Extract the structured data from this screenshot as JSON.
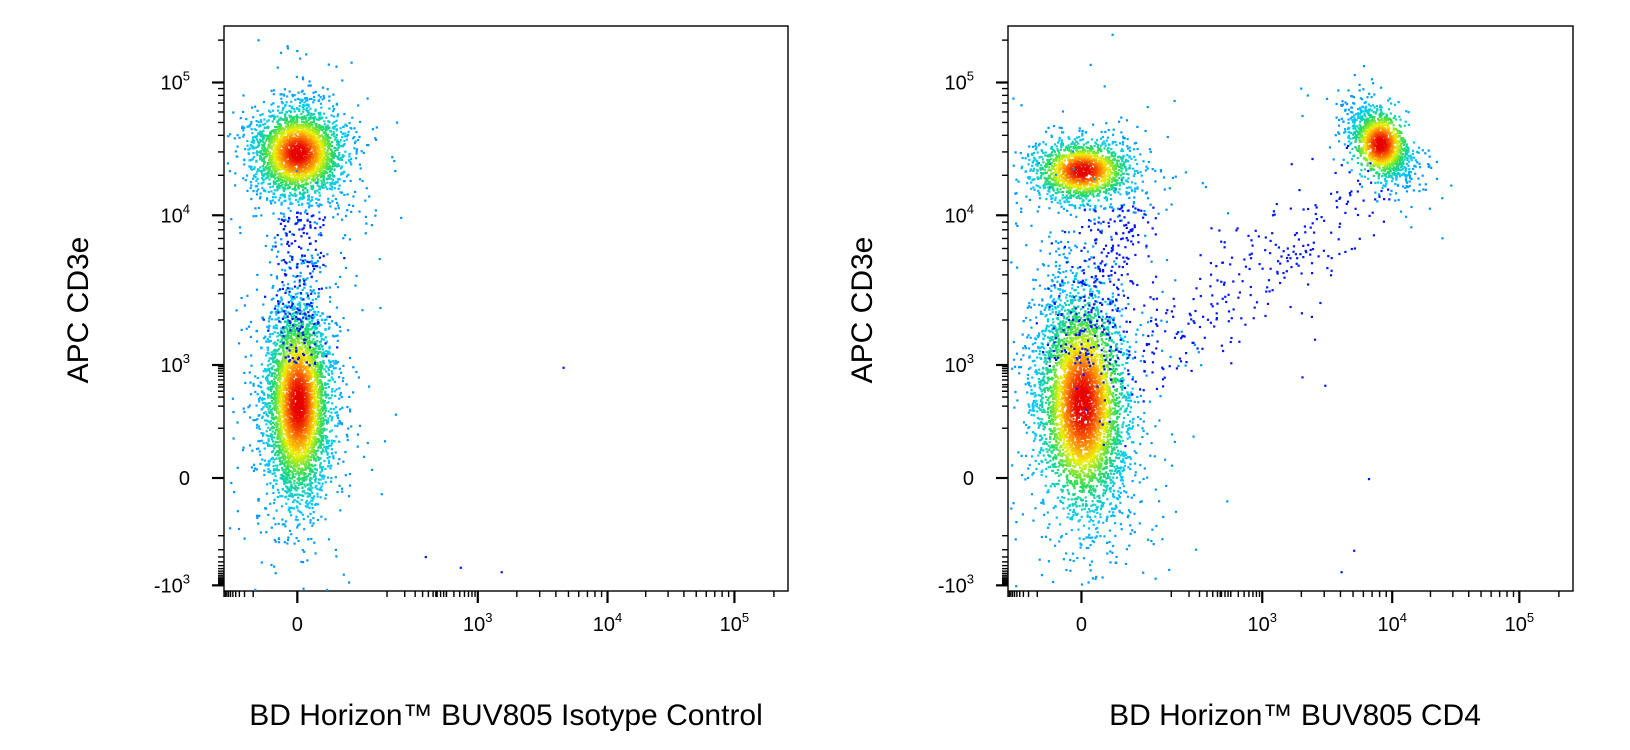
{
  "chart_data": [
    {
      "type": "scatter",
      "style": "density-dot-plot",
      "xlabel": "BD Horizon™ BUV805 Isotype Control",
      "ylabel": "APC CD3e",
      "x_scale": "biexponential",
      "y_scale": "biexponential",
      "xlim": [
        -300,
        200000
      ],
      "ylim": [
        -1500,
        200000
      ],
      "x_ticks": [
        {
          "value": 0,
          "base": "0",
          "exp": ""
        },
        {
          "value": 1000,
          "base": "10",
          "exp": "3"
        },
        {
          "value": 10000,
          "base": "10",
          "exp": "4"
        },
        {
          "value": 100000,
          "base": "10",
          "exp": "5"
        }
      ],
      "y_ticks": [
        {
          "value": -1000,
          "base": "-10",
          "exp": "3"
        },
        {
          "value": 0,
          "base": "0",
          "exp": ""
        },
        {
          "value": 1000,
          "base": "10",
          "exp": "3"
        },
        {
          "value": 10000,
          "base": "10",
          "exp": "4"
        },
        {
          "value": 100000,
          "base": "10",
          "exp": "5"
        }
      ],
      "grid": false,
      "populations": [
        {
          "name": "",
          "x_center": 0,
          "y_center": 30000,
          "count": 2800
        },
        {
          "name": "",
          "x_center": 0,
          "y_center": 100,
          "count": 4200
        }
      ],
      "outliers": [
        {
          "x": 4500,
          "y": 900
        },
        {
          "x": 130,
          "y": -150
        },
        {
          "x": 500,
          "y": -300
        },
        {
          "x": 1500,
          "y": -400
        }
      ]
    },
    {
      "type": "scatter",
      "style": "density-dot-plot",
      "xlabel": "BD Horizon™ BUV805 CD4",
      "ylabel": "APC CD3e",
      "x_scale": "biexponential",
      "y_scale": "biexponential",
      "xlim": [
        -300,
        200000
      ],
      "ylim": [
        -1500,
        200000
      ],
      "x_ticks": [
        {
          "value": 0,
          "base": "0",
          "exp": ""
        },
        {
          "value": 1000,
          "base": "10",
          "exp": "3"
        },
        {
          "value": 10000,
          "base": "10",
          "exp": "4"
        },
        {
          "value": 100000,
          "base": "10",
          "exp": "5"
        }
      ],
      "y_ticks": [
        {
          "value": -1000,
          "base": "-10",
          "exp": "3"
        },
        {
          "value": 0,
          "base": "0",
          "exp": ""
        },
        {
          "value": 1000,
          "base": "10",
          "exp": "3"
        },
        {
          "value": 10000,
          "base": "10",
          "exp": "4"
        },
        {
          "value": 100000,
          "base": "10",
          "exp": "5"
        }
      ],
      "grid": false,
      "populations": [
        {
          "name": "",
          "x_center": 0,
          "y_center": 22000,
          "count": 1700
        },
        {
          "name": "",
          "x_center": 8000,
          "y_center": 35000,
          "count": 1500
        },
        {
          "name": "",
          "x_center": 0,
          "y_center": 100,
          "count": 4700
        }
      ],
      "outliers": [
        {
          "x": 2000,
          "y": 500
        },
        {
          "x": 3000,
          "y": 300
        },
        {
          "x": 5000,
          "y": -100
        },
        {
          "x": 6500,
          "y": 0
        },
        {
          "x": 2500,
          "y": 1500
        },
        {
          "x": 4000,
          "y": -400
        }
      ]
    }
  ]
}
